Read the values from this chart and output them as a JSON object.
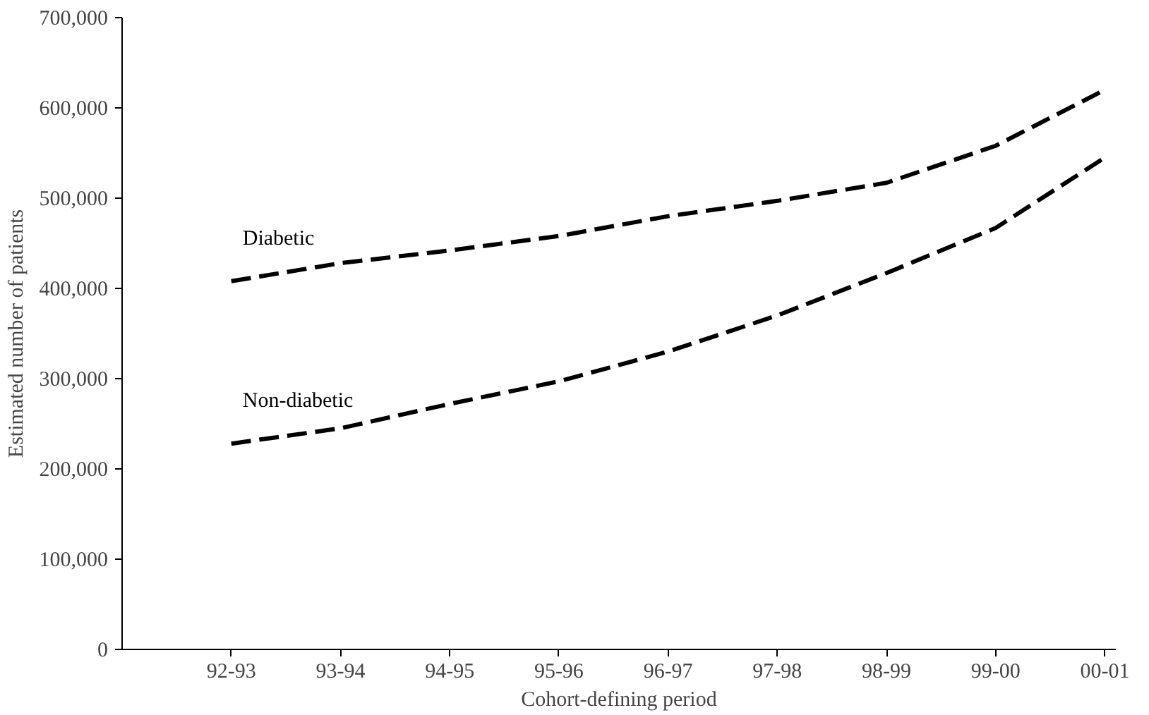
{
  "chart_data": {
    "type": "line",
    "xlabel": "Cohort-defining period",
    "ylabel": "Estimated number of patients",
    "categories": [
      "92-93",
      "93-94",
      "94-95",
      "95-96",
      "96-97",
      "97-98",
      "98-99",
      "99-00",
      "00-01"
    ],
    "series": [
      {
        "name": "Diabetic",
        "color": "#000000",
        "values": [
          408000,
          428000,
          442000,
          458000,
          480000,
          497000,
          517000,
          558000,
          620000
        ]
      },
      {
        "name": "Non-diabetic",
        "color": "#000000",
        "values": [
          228000,
          245000,
          272000,
          297000,
          330000,
          370000,
          417000,
          467000,
          545000
        ]
      }
    ],
    "ylim": [
      0,
      700000
    ],
    "yticks": [
      {
        "value": 0,
        "label": "0"
      },
      {
        "value": 100000,
        "label": "100,000"
      },
      {
        "value": 200000,
        "label": "200,000"
      },
      {
        "value": 300000,
        "label": "300,000"
      },
      {
        "value": 400000,
        "label": "400,000"
      },
      {
        "value": 500000,
        "label": "500,000"
      },
      {
        "value": 600000,
        "label": "600,000"
      },
      {
        "value": 700000,
        "label": "700,000"
      }
    ],
    "grid": false,
    "line_style": "dashed"
  }
}
